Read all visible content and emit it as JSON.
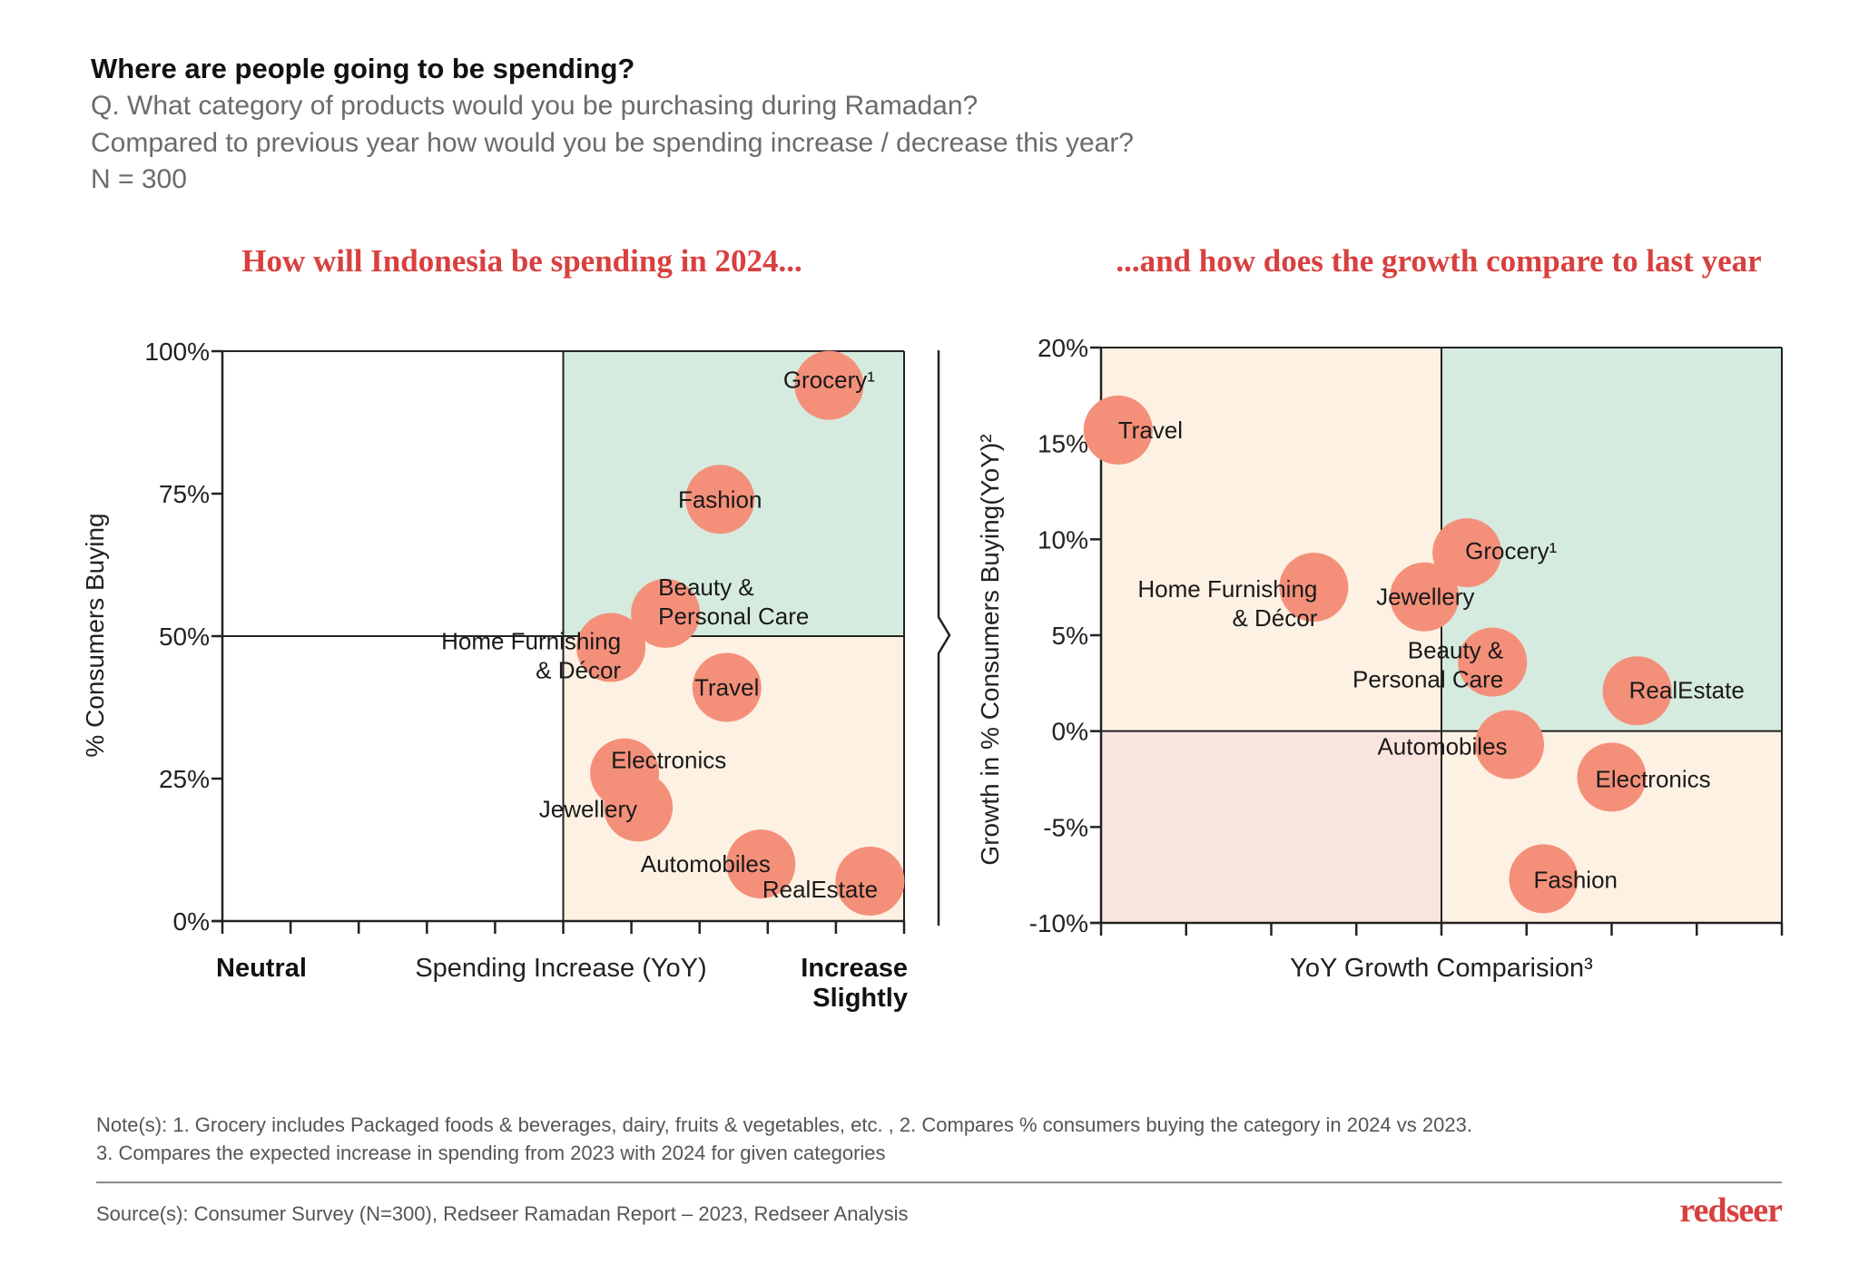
{
  "header": {
    "title": "Where are people going to be spending?",
    "question_1": "Q. What category of products would you be purchasing during Ramadan?",
    "question_2": "Compared to previous year how would you be spending increase / decrease this year?",
    "sample": "N = 300"
  },
  "colors": {
    "bubble": "#F4907A",
    "quadrant_green": "#D6EBDF",
    "quadrant_cream": "#FDF1E3",
    "quadrant_pink": "#FAE5DE",
    "title_red": "#D8403F"
  },
  "chart_data": [
    {
      "type": "scatter",
      "title": "How will Indonesia be spending in 2024...",
      "xlabel": "Spending Increase (YoY)",
      "x_end_labels": {
        "left": "Neutral",
        "right": [
          "Increase",
          "Slightly"
        ]
      },
      "ylabel": "% Consumers Buying",
      "xlim": [
        0,
        10
      ],
      "x_ticks": 10,
      "ylim": [
        0,
        100
      ],
      "y_ticks": [
        "0%",
        "25%",
        "50%",
        "75%",
        "100%"
      ],
      "y_tick_values": [
        0,
        25,
        50,
        75,
        100
      ],
      "quadrant_split": {
        "x": 5,
        "y": 50
      },
      "grid": false,
      "points": [
        {
          "label": [
            "Grocery¹"
          ],
          "x": 8.9,
          "y": 94
        },
        {
          "label": [
            "Fashion"
          ],
          "x": 7.3,
          "y": 74
        },
        {
          "label": [
            "Beauty &",
            "Personal Care"
          ],
          "x": 6.5,
          "y": 54
        },
        {
          "label": [
            "Home Furnishing",
            "& Décor"
          ],
          "x": 5.7,
          "y": 48
        },
        {
          "label": [
            "Travel"
          ],
          "x": 7.4,
          "y": 41
        },
        {
          "label": [
            "Electronics"
          ],
          "x": 5.9,
          "y": 26
        },
        {
          "label": [
            "Jewellery"
          ],
          "x": 6.1,
          "y": 20
        },
        {
          "label": [
            "Automobiles"
          ],
          "x": 7.9,
          "y": 10
        },
        {
          "label": [
            "RealEstate"
          ],
          "x": 9.5,
          "y": 7
        }
      ]
    },
    {
      "type": "scatter",
      "title": "...and how does the growth compare to last year",
      "xlabel": "YoY Growth Comparision³",
      "ylabel": "Growth in % Consumers Buying(YoY)²",
      "xlim": [
        0,
        8
      ],
      "x_ticks": 8,
      "ylim": [
        -10,
        20
      ],
      "y_ticks": [
        "-10%",
        "-5%",
        "0%",
        "5%",
        "10%",
        "15%",
        "20%"
      ],
      "y_tick_values": [
        -10,
        -5,
        0,
        5,
        10,
        15,
        20
      ],
      "quadrant_split": {
        "x": 4,
        "y": 0
      },
      "grid": false,
      "points": [
        {
          "label": [
            "Travel"
          ],
          "x": 0.2,
          "y": 15.7
        },
        {
          "label": [
            "Home Furnishing",
            "& Décor"
          ],
          "x": 2.5,
          "y": 7.5
        },
        {
          "label": [
            "Jewellery"
          ],
          "x": 3.8,
          "y": 7.0
        },
        {
          "label": [
            "Grocery¹"
          ],
          "x": 4.3,
          "y": 9.3
        },
        {
          "label": [
            "Beauty &",
            "Personal Care"
          ],
          "x": 4.6,
          "y": 3.6
        },
        {
          "label": [
            "RealEstate"
          ],
          "x": 6.3,
          "y": 2.1
        },
        {
          "label": [
            "Automobiles"
          ],
          "x": 4.8,
          "y": -0.7
        },
        {
          "label": [
            "Electronics"
          ],
          "x": 6.0,
          "y": -2.4
        },
        {
          "label": [
            "Fashion"
          ],
          "x": 5.2,
          "y": -7.7
        }
      ]
    }
  ],
  "footer": {
    "note_1": "Note(s): 1. Grocery includes Packaged foods & beverages, dairy, fruits & vegetables, etc. , 2. Compares % consumers buying the category in 2024 vs 2023.",
    "note_2": "3. Compares the expected increase in spending from 2023 with 2024 for given categories",
    "source": "Source(s): Consumer Survey (N=300), Redseer Ramadan Report – 2023,  Redseer Analysis",
    "logo": "redseer"
  }
}
